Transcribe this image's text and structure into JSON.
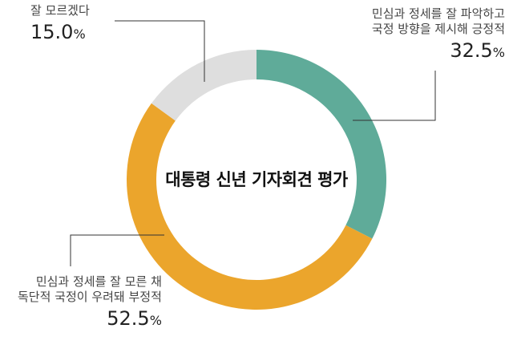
{
  "chart_data": {
    "type": "pie",
    "title": "대통령 신년 기자회견 평가",
    "series": [
      {
        "name": "",
        "values": [
          32.5,
          52.5,
          15.0
        ]
      }
    ],
    "categories": [
      "민심과 정세를 잘 파악하고 국정 방향을 제시해 긍정적",
      "민심과 정세를 잘 모른 채 독단적 국정이 우려돼 부정적",
      "잘 모르겠다"
    ],
    "slices": [
      {
        "label_line1": "민심과 정세를 잘 파악하고",
        "label_line2": "국정 방향을 제시해 긍정적",
        "value": 32.5,
        "value_text": "32.5",
        "color": "#5fab99"
      },
      {
        "label_line1": "민심과 정세를 잘 모른 채",
        "label_line2": "독단적 국정이 우려돼 부정적",
        "value": 52.5,
        "value_text": "52.5",
        "color": "#eba52c"
      },
      {
        "label_line1": "잘 모르겠다",
        "label_line2": "",
        "value": 15.0,
        "value_text": "15.0",
        "color": "#dedede"
      }
    ],
    "unit": "%",
    "donut": true,
    "legend": "none"
  }
}
